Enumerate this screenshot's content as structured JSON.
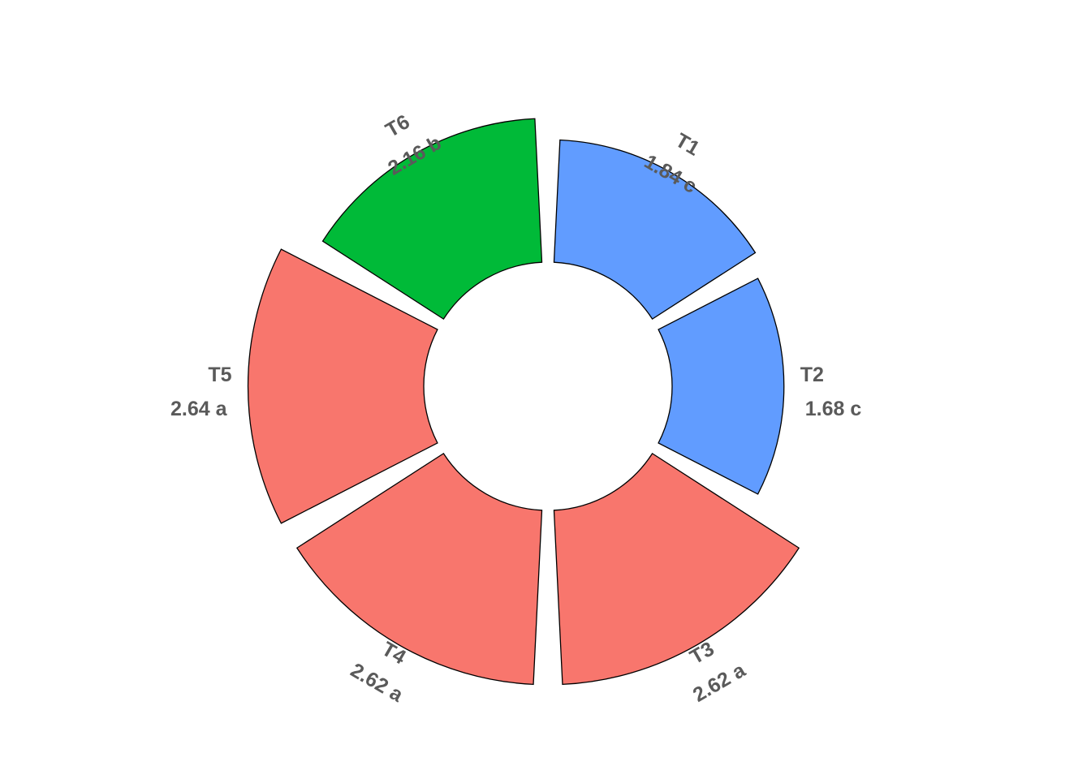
{
  "chart_data": {
    "type": "bar",
    "coord": "polar",
    "categories": [
      "T1",
      "T2",
      "T3",
      "T4",
      "T5",
      "T6"
    ],
    "values": [
      1.84,
      1.68,
      2.62,
      2.62,
      2.64,
      2.16
    ],
    "groups": [
      "c",
      "c",
      "a",
      "a",
      "a",
      "b"
    ],
    "value_labels": [
      "1.84 c",
      "1.68 c",
      "2.62 a",
      "2.62 a",
      "2.64 a",
      "2.16 b"
    ],
    "colors": [
      "#619CFF",
      "#619CFF",
      "#F8766D",
      "#F8766D",
      "#F8766D",
      "#00BA38"
    ],
    "group_colors": {
      "a": "#F8766D",
      "b": "#00BA38",
      "c": "#619CFF"
    },
    "title": "",
    "xlabel": "",
    "ylabel": "",
    "grid": false,
    "legend": "none"
  }
}
